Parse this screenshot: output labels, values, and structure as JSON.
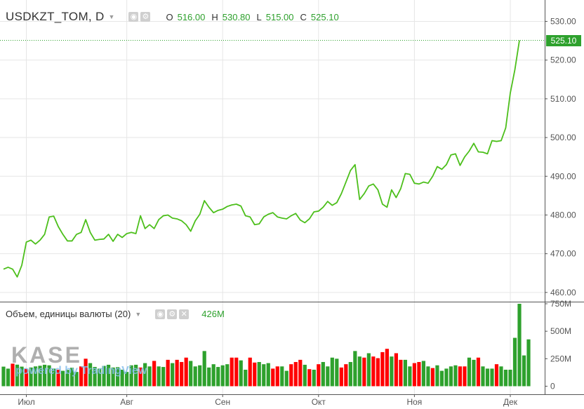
{
  "header": {
    "symbol": "USDKZT_TOM, D",
    "caret": "▼",
    "eye_glyph": "◉",
    "gear_glyph": "⚙",
    "ohlc": [
      {
        "label": "O",
        "value": "516.00"
      },
      {
        "label": "H",
        "value": "530.80"
      },
      {
        "label": "L",
        "value": "515.00"
      },
      {
        "label": "C",
        "value": "525.10"
      }
    ]
  },
  "volume_legend": {
    "title": "Объем, единицы валюты (20)",
    "caret": "▼",
    "close_glyph": "✕",
    "value": "426M"
  },
  "watermark": {
    "logo_text": "KASE",
    "subtitle": "powered by TradingView"
  },
  "colors": {
    "up": "#2ea12d",
    "down": "#ff0000",
    "line": "#4cbf1b",
    "grid": "#e6e6e6"
  },
  "chart_data": [
    {
      "type": "line",
      "x_ticks": [
        "Июл",
        "Авг",
        "Сен",
        "Окт",
        "Ноя",
        "Дек"
      ],
      "x_tick_index": [
        5,
        27,
        48,
        69,
        90,
        111
      ],
      "ylim": [
        456,
        532
      ],
      "y_ticks": [
        "460.00",
        "470.00",
        "480.00",
        "490.00",
        "500.00",
        "510.00",
        "520.00",
        "530.00"
      ],
      "last_price": "525.10",
      "series": [
        {
          "values": [
            466,
            466.5,
            466,
            464,
            467,
            473,
            473.5,
            472.5,
            473.5,
            475,
            479.5,
            479.7,
            477,
            475,
            473.3,
            473.3,
            475,
            475.5,
            478.8,
            475.5,
            473.5,
            473.7,
            473.8,
            475,
            473.2,
            475,
            474.2,
            475.2,
            475.5,
            475.2,
            479.8,
            476.5,
            477.5,
            476.5,
            478.8,
            479.8,
            480,
            479.2,
            479,
            478.5,
            477.5,
            475.8,
            478.5,
            480.2,
            483.7,
            482,
            480.6,
            481.2,
            481.5,
            482.2,
            482.6,
            482.8,
            482.3,
            479.8,
            479.5,
            477.5,
            477.7,
            479.5,
            480.2,
            480.6,
            479.5,
            479.2,
            479,
            479.8,
            480.4,
            478.7,
            478,
            479,
            480.8,
            481,
            482,
            483.5,
            482.5,
            483.2,
            485.5,
            488.5,
            491.5,
            493,
            484,
            485.5,
            487.5,
            488,
            486.5,
            482.8,
            482,
            486.5,
            484.5,
            486.8,
            490.7,
            490.5,
            488.2,
            488,
            488.5,
            488.2,
            490,
            492.5,
            491.8,
            493,
            495.5,
            495.8,
            492.8,
            495,
            496.5,
            498.5,
            496.3,
            496.2,
            495.8,
            499.2,
            499,
            499.2,
            502.5,
            511.5,
            517.5,
            525.1
          ]
        }
      ]
    },
    {
      "type": "bar",
      "ylim": [
        0,
        750
      ],
      "y_ticks": [
        "0",
        "250M",
        "500M",
        "750M"
      ],
      "last_value": "426M",
      "values": [
        178,
        160,
        205,
        196,
        178,
        158,
        170,
        180,
        186,
        195,
        190,
        160,
        150,
        140,
        149,
        168,
        130,
        180,
        250,
        210,
        175,
        160,
        185,
        195,
        170,
        173,
        150,
        130,
        190,
        195,
        170,
        210,
        180,
        230,
        180,
        175,
        240,
        210,
        240,
        220,
        260,
        230,
        180,
        190,
        320,
        170,
        200,
        175,
        190,
        200,
        260,
        260,
        235,
        150,
        260,
        215,
        220,
        200,
        210,
        160,
        180,
        180,
        140,
        200,
        220,
        240,
        195,
        155,
        150,
        200,
        220,
        180,
        260,
        250,
        170,
        200,
        220,
        320,
        270,
        260,
        300,
        270,
        255,
        310,
        340,
        270,
        300,
        240,
        240,
        180,
        210,
        220,
        230,
        180,
        165,
        190,
        140,
        160,
        180,
        190,
        180,
        180,
        260,
        240,
        260,
        180,
        160,
        160,
        200,
        180,
        150,
        150,
        440,
        750,
        280,
        426
      ],
      "up": [
        true,
        true,
        false,
        true,
        true,
        false,
        true,
        true,
        true,
        true,
        true,
        true,
        false,
        true,
        true,
        true,
        true,
        false,
        false,
        true,
        true,
        true,
        true,
        true,
        true,
        true,
        true,
        true,
        true,
        true,
        false,
        true,
        true,
        false,
        true,
        true,
        false,
        true,
        false,
        false,
        false,
        true,
        true,
        true,
        true,
        true,
        true,
        true,
        true,
        true,
        false,
        false,
        true,
        true,
        false,
        false,
        true,
        true,
        true,
        false,
        false,
        true,
        true,
        false,
        false,
        false,
        true,
        false,
        true,
        false,
        true,
        true,
        true,
        true,
        false,
        false,
        true,
        true,
        true,
        false,
        true,
        false,
        false,
        false,
        false,
        true,
        false,
        false,
        true,
        true,
        false,
        false,
        true,
        true,
        false,
        true,
        true,
        true,
        true,
        true,
        false,
        false,
        true,
        true,
        false,
        true,
        true,
        true,
        false,
        true,
        true,
        true,
        true,
        true,
        true,
        true
      ]
    }
  ]
}
